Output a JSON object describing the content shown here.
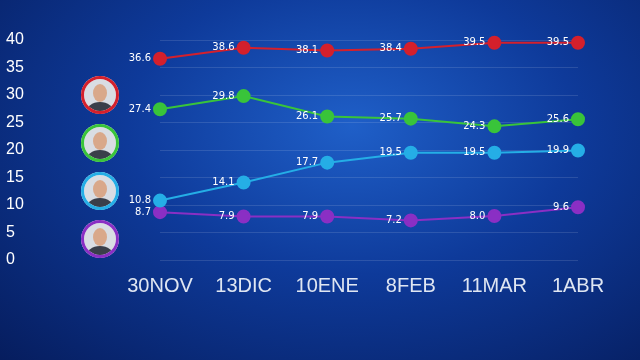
{
  "chart_data": {
    "type": "line",
    "categories": [
      "30NOV",
      "13DIC",
      "10ENE",
      "8FEB",
      "11MAR",
      "1ABR"
    ],
    "series": [
      {
        "color": "#d4202c",
        "values": [
          36.6,
          38.6,
          38.1,
          38.4,
          39.5,
          39.5
        ]
      },
      {
        "color": "#39c43a",
        "values": [
          27.4,
          29.8,
          26.1,
          25.7,
          24.3,
          25.6
        ]
      },
      {
        "color": "#25aee6",
        "values": [
          10.8,
          14.1,
          17.7,
          19.5,
          19.5,
          19.9
        ]
      },
      {
        "color": "#8a2fc4",
        "values": [
          8.7,
          7.9,
          7.9,
          7.2,
          8.0,
          9.6
        ],
        "value_labels": [
          "8.7",
          "7.9",
          "7.9",
          "7.2",
          "8.0",
          "9.6"
        ]
      }
    ],
    "ylim": [
      0,
      40
    ],
    "yticks": [
      0,
      5,
      10,
      15,
      20,
      25,
      30,
      35,
      40
    ],
    "grid": true,
    "data_labels": true,
    "marker": "circle",
    "line_style": "solid"
  }
}
